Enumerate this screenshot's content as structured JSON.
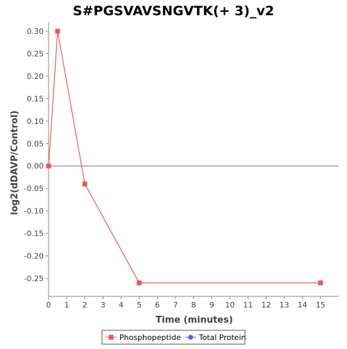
{
  "chart_data": {
    "type": "line",
    "title": "S#PGSVAVSNGVTK(+ 3)_v2",
    "xlabel": "Time (minutes)",
    "ylabel": "log2(dDAVP/Control)",
    "xlim": [
      0,
      16
    ],
    "ylim": [
      -0.29,
      0.32
    ],
    "x_ticks": [
      0,
      1,
      2,
      3,
      4,
      5,
      6,
      7,
      8,
      9,
      10,
      11,
      12,
      13,
      14,
      15
    ],
    "y_ticks": [
      -0.25,
      -0.2,
      -0.15,
      -0.1,
      -0.05,
      0.0,
      0.05,
      0.1,
      0.15,
      0.2,
      0.25,
      0.3
    ],
    "y_tick_labels": [
      "-0.25",
      "-0.20",
      "-0.15",
      "-0.10",
      "-0.05",
      "0.00",
      "0.05",
      "0.10",
      "0.15",
      "0.20",
      "0.25",
      "0.30"
    ],
    "grid": false,
    "zero_line": true,
    "legend_position": "bottom",
    "series": [
      {
        "name": "Phosphopeptide",
        "color": "#e8585a",
        "marker": "square",
        "points": [
          [
            0,
            0.0
          ],
          [
            0.5,
            0.3
          ],
          [
            2,
            -0.04
          ],
          [
            5,
            -0.26
          ],
          [
            15,
            -0.26
          ]
        ]
      },
      {
        "name": "Total Protein",
        "color": "#5b5bf0",
        "marker": "circle",
        "points": []
      }
    ]
  }
}
